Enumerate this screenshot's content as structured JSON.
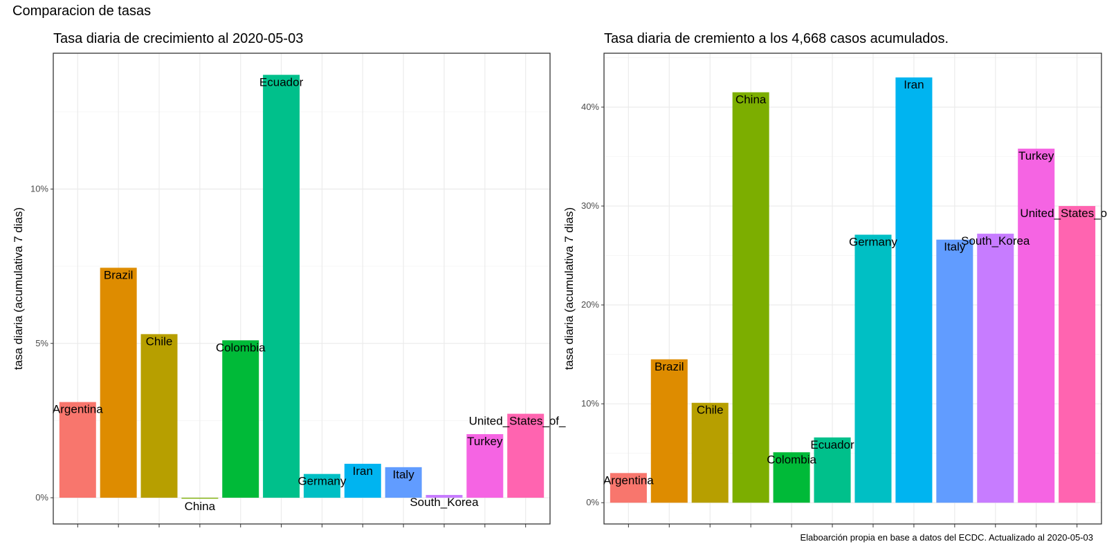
{
  "figure": {
    "title": "Comparacion de tasas",
    "caption": "Elaboarción propia en base a datos del ECDC.  Actualizado al  2020-05-03"
  },
  "chart_data": [
    {
      "type": "bar",
      "title": "Tasa diaria de crecimiento al 2020-05-03",
      "ylabel": "tasa diaria (acumulativa 7 dias)",
      "xlabel": "",
      "ylim": [
        -0.0085,
        0.144
      ],
      "yticks": [
        0,
        0.05,
        0.1
      ],
      "ytick_labels": [
        "0%",
        "5%",
        "10%"
      ],
      "grid": true,
      "categories": [
        "Argentina",
        "Brazil",
        "Chile",
        "China",
        "Colombia",
        "Ecuador",
        "Germany",
        "Iran",
        "Italy",
        "South_Korea",
        "Turkey",
        "United_States_of_America"
      ],
      "values": [
        0.031,
        0.0745,
        0.053,
        -0.0003,
        0.051,
        0.137,
        0.0077,
        0.011,
        0.0099,
        0.0009,
        0.0206,
        0.0272
      ],
      "labels": [
        "Argentina",
        "Brazil",
        "Chile",
        "China",
        "Colombia",
        "Ecuador",
        "Germany",
        "Iran",
        "Italy",
        "South_Korea",
        "Turkey",
        "United_States_of_"
      ],
      "colors": [
        "#F8766D",
        "#DE8C00",
        "#B79F00",
        "#7CAE00",
        "#00BA38",
        "#00C08B",
        "#00BFC4",
        "#00B4F0",
        "#619CFF",
        "#C77CFF",
        "#F564E3",
        "#FF64B0"
      ]
    },
    {
      "type": "bar",
      "title": "Tasa diaria de cremiento a los 4,668 casos acumulados.",
      "ylabel": "tasa diaria (acumulativa 7 dias)",
      "xlabel": "",
      "ylim": [
        -0.0215,
        0.4545
      ],
      "yticks": [
        0,
        0.1,
        0.2,
        0.3,
        0.4
      ],
      "ytick_labels": [
        "0%",
        "10%",
        "20%",
        "30%",
        "40%"
      ],
      "grid": true,
      "categories": [
        "Argentina",
        "Brazil",
        "Chile",
        "China",
        "Colombia",
        "Ecuador",
        "Germany",
        "Iran",
        "Italy",
        "South_Korea",
        "Turkey",
        "United_States_of_America"
      ],
      "values": [
        0.03,
        0.145,
        0.101,
        0.415,
        0.051,
        0.066,
        0.271,
        0.43,
        0.266,
        0.272,
        0.358,
        0.3
      ],
      "labels": [
        "Argentina",
        "Brazil",
        "Chile",
        "China",
        "Colombia",
        "Ecuador",
        "Germany",
        "Iran",
        "Italy",
        "South_Korea",
        "Turkey",
        "United_States_of_"
      ],
      "colors": [
        "#F8766D",
        "#DE8C00",
        "#B79F00",
        "#7CAE00",
        "#00BA38",
        "#00C08B",
        "#00BFC4",
        "#00B4F0",
        "#619CFF",
        "#C77CFF",
        "#F564E3",
        "#FF64B0"
      ]
    }
  ]
}
